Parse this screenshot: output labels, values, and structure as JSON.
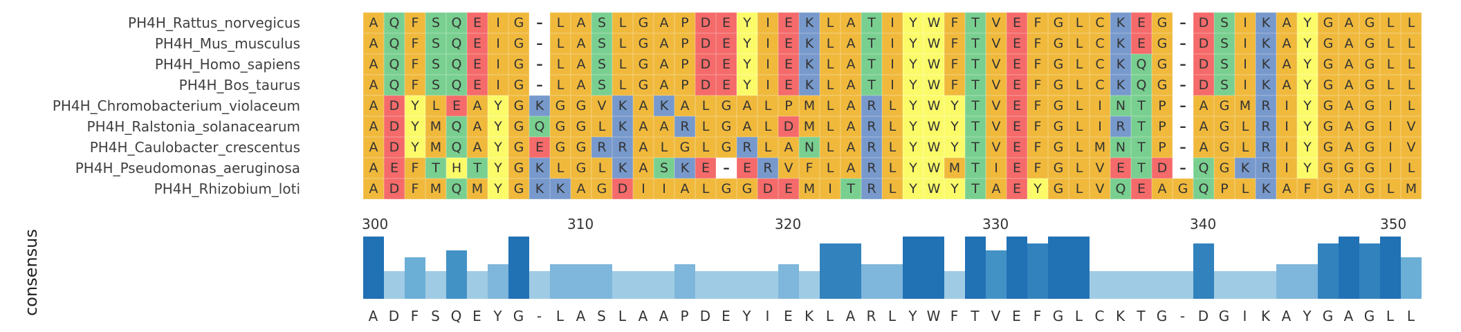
{
  "palette": {
    "A": "#f0b93c",
    "C": "#f0b93c",
    "F": "#f0b93c",
    "G": "#f0b93c",
    "I": "#f0b93c",
    "L": "#f0b93c",
    "M": "#f0b93c",
    "P": "#f0b93c",
    "V": "#f0b93c",
    "Y": "#fbfb6a",
    "W": "#fbfb6a",
    "H": "#fbfb6a",
    "S": "#79cf90",
    "T": "#79cf90",
    "N": "#79cf90",
    "Q": "#79cf90",
    "D": "#f56a6a",
    "E": "#f56a6a",
    "K": "#7799cc",
    "R": "#7799cc",
    "-": "#ffffff"
  },
  "alignment": [
    {
      "name": "PH4H_Rattus_norvegicus",
      "seq": "AQFSQEIG-LASLGAPDEYIEKLATIYWFTVEFGLCKEG-DSIKAYGAGLL"
    },
    {
      "name": "PH4H_Mus_musculus",
      "seq": "AQFSQEIG-LASLGAPDEYIEKLATIYWFTVEFGLCKEG-DSIKAYGAGLL"
    },
    {
      "name": "PH4H_Homo_sapiens",
      "seq": "AQFSQEIG-LASLGAPDEYIEKLATIYWFTVEFGLCKQG-DSIKAYGAGLL"
    },
    {
      "name": "PH4H_Bos_taurus",
      "seq": "AQFSQEIG-LASLGAPDEYIEKLATIYWFTVEFGLCKQG-DSIKAYGAGLL"
    },
    {
      "name": "PH4H_Chromobacterium_violaceum",
      "seq": "ADYLEAYGKGGVKAKALGALPMLARLYWYTVEFGLINTP-AGMRIYGAGIL"
    },
    {
      "name": "PH4H_Ralstonia_solanacearum",
      "seq": "ADYMQAYGQGGLKAARLGALDMLARLYWYTVEFGLIRTP-AGLRIYGAGIV"
    },
    {
      "name": "PH4H_Caulobacter_crescentus",
      "seq": "ADYMQAYGEGGRRALGLGRLANLARLYWYTVEFGLMNTP-AGLRIYGAGIV"
    },
    {
      "name": "PH4H_Pseudomonas_aeruginosa",
      "seq": "AEFTHTYGKLGLKASKE-ERVFLARLYWMTIEFGLVETD-QGKRIYGGGIL"
    },
    {
      "name": "PH4H_Rhizobium_loti",
      "seq": "ADFMQMYGKKAGDIIALGGDEMITRLYWYTAEYGLVQEAGQPLKAFGAGLM"
    }
  ],
  "axis": {
    "start": 300,
    "ticks": [
      300,
      310,
      320,
      330,
      340,
      350
    ]
  },
  "consensus": {
    "label": "consensus",
    "letters": [
      "A",
      "D",
      "F",
      "S",
      "Q",
      "E",
      "Y",
      "G",
      "-",
      "L",
      "A",
      "S",
      "L",
      "A",
      "A",
      "P",
      "D",
      "E",
      "Y",
      "I",
      "E",
      "K",
      "L",
      "A",
      "R",
      "L",
      "Y",
      "W",
      "F",
      "T",
      "V",
      "E",
      "F",
      "G",
      "L",
      "C",
      "K",
      "T",
      "G",
      "-",
      "D",
      "G",
      "I",
      "K",
      "A",
      "Y",
      "G",
      "A",
      "G",
      "L",
      "L"
    ],
    "conservation": [
      1.0,
      0.44,
      0.67,
      0.44,
      0.78,
      0.44,
      0.56,
      1.0,
      0.44,
      0.56,
      0.56,
      0.56,
      0.44,
      0.44,
      0.44,
      0.56,
      0.44,
      0.44,
      0.44,
      0.44,
      0.56,
      0.44,
      0.89,
      0.89,
      0.56,
      0.56,
      1.0,
      1.0,
      0.44,
      1.0,
      0.78,
      1.0,
      0.89,
      1.0,
      1.0,
      0.44,
      0.44,
      0.44,
      0.44,
      0.44,
      0.89,
      0.44,
      0.44,
      0.44,
      0.56,
      0.56,
      0.89,
      1.0,
      0.89,
      1.0,
      0.67
    ]
  }
}
